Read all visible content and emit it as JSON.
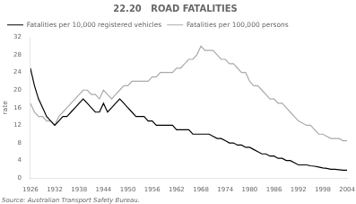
{
  "chart_data": {
    "type": "line",
    "title": "22.20   ROAD FATALITIES",
    "ylabel": "rate",
    "annotations": [
      "Source: Australian Transport Safety Bureau."
    ],
    "x": [
      1926,
      1927,
      1928,
      1929,
      1930,
      1931,
      1932,
      1933,
      1934,
      1935,
      1936,
      1937,
      1938,
      1939,
      1940,
      1941,
      1942,
      1943,
      1944,
      1945,
      1946,
      1947,
      1948,
      1949,
      1950,
      1951,
      1952,
      1953,
      1954,
      1955,
      1956,
      1957,
      1958,
      1959,
      1960,
      1961,
      1962,
      1963,
      1964,
      1965,
      1966,
      1967,
      1968,
      1969,
      1970,
      1971,
      1972,
      1973,
      1974,
      1975,
      1976,
      1977,
      1978,
      1979,
      1980,
      1981,
      1982,
      1983,
      1984,
      1985,
      1986,
      1987,
      1988,
      1989,
      1990,
      1991,
      1992,
      1993,
      1994,
      1995,
      1996,
      1997,
      1998,
      1999,
      2000,
      2001,
      2002,
      2003,
      2004
    ],
    "series": [
      {
        "name": "Fatalities per 10,000 registered vehicles",
        "color": "#000000",
        "values": [
          25,
          21,
          18,
          16,
          14,
          13,
          12,
          13,
          14,
          14,
          15,
          16,
          17,
          18,
          17,
          16,
          15,
          15,
          17,
          15,
          16,
          17,
          18,
          17,
          16,
          15,
          14,
          14,
          14,
          13,
          13,
          12,
          12,
          12,
          12,
          12,
          11,
          11,
          11,
          11,
          10,
          10,
          10,
          10,
          10,
          9.5,
          9,
          9,
          8.5,
          8,
          8,
          7.5,
          7.5,
          7,
          7,
          6.5,
          6,
          5.5,
          5.5,
          5,
          5,
          4.5,
          4.5,
          4,
          4,
          3.5,
          3,
          3,
          3,
          2.8,
          2.7,
          2.5,
          2.3,
          2.2,
          2,
          2,
          1.9,
          1.8,
          1.8
        ]
      },
      {
        "name": "Fatalities per 100,000 persons",
        "color": "#aaaaaa",
        "values": [
          17,
          15,
          14,
          14,
          13,
          13,
          12,
          14,
          15,
          16,
          17,
          18,
          19,
          20,
          20,
          19,
          19,
          18,
          20,
          19,
          18,
          19,
          20,
          21,
          21,
          22,
          22,
          22,
          22,
          22,
          23,
          23,
          24,
          24,
          24,
          24,
          25,
          25,
          26,
          27,
          27,
          28,
          30,
          29,
          29,
          29,
          28,
          27,
          27,
          26,
          26,
          25,
          24,
          24,
          22,
          21,
          21,
          20,
          19,
          18,
          18,
          17,
          17,
          16,
          15,
          14,
          13,
          12.5,
          12,
          12,
          11,
          10,
          10,
          9.5,
          9,
          9,
          9,
          8.5,
          8.5
        ]
      }
    ],
    "xlim": [
      1926,
      2004
    ],
    "xticks": [
      1926,
      1932,
      1938,
      1944,
      1950,
      1956,
      1962,
      1968,
      1974,
      1980,
      1986,
      1992,
      1998,
      2004
    ],
    "ylim": [
      0,
      32
    ],
    "yticks": [
      0,
      4,
      8,
      12,
      16,
      20,
      24,
      28,
      32
    ],
    "grid": false,
    "legend": "top-left"
  }
}
